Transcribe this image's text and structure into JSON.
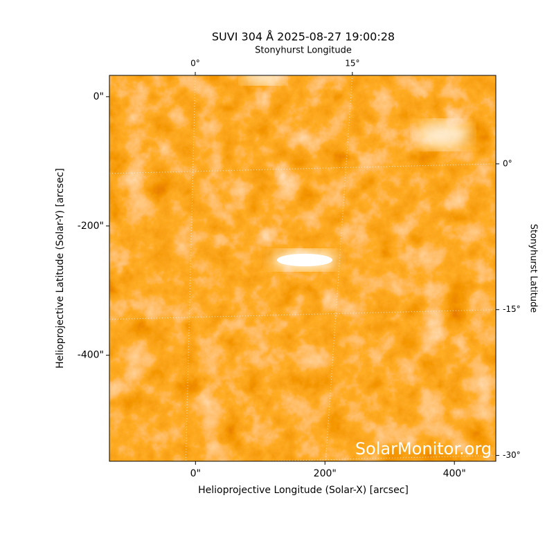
{
  "chart_data": {
    "type": "image",
    "title": "SUVI 304 Å 2025-08-27 19:00:28",
    "xlabel": "Helioprojective Longitude (Solar-X) [arcsec]",
    "ylabel": "Helioprojective Latitude (Solar-Y) [arcsec]",
    "x2label": "Stonyhurst Longitude",
    "y2label": "Stonyhurst Latitude",
    "watermark": "SolarMonitor.org",
    "xlim": [
      -133,
      464
    ],
    "ylim": [
      -564,
      33
    ],
    "xticks": [
      {
        "value": 0,
        "label": "0\""
      },
      {
        "value": 200,
        "label": "200\""
      },
      {
        "value": 400,
        "label": "400\""
      }
    ],
    "yticks": [
      {
        "value": 0,
        "label": "0\""
      },
      {
        "value": -200,
        "label": "-200\""
      },
      {
        "value": -400,
        "label": "-400\""
      }
    ],
    "x2lim": [
      -8.2,
      28.7
    ],
    "x2ticks": [
      {
        "value": 0,
        "label": "0°"
      },
      {
        "value": 15,
        "label": "15°"
      }
    ],
    "y2lim": [
      -30.6,
      9.1
    ],
    "y2ticks": [
      {
        "value": 0,
        "label": "0°"
      },
      {
        "value": -15,
        "label": "-15°"
      },
      {
        "value": -30,
        "label": "-30°"
      }
    ],
    "grid": true
  }
}
